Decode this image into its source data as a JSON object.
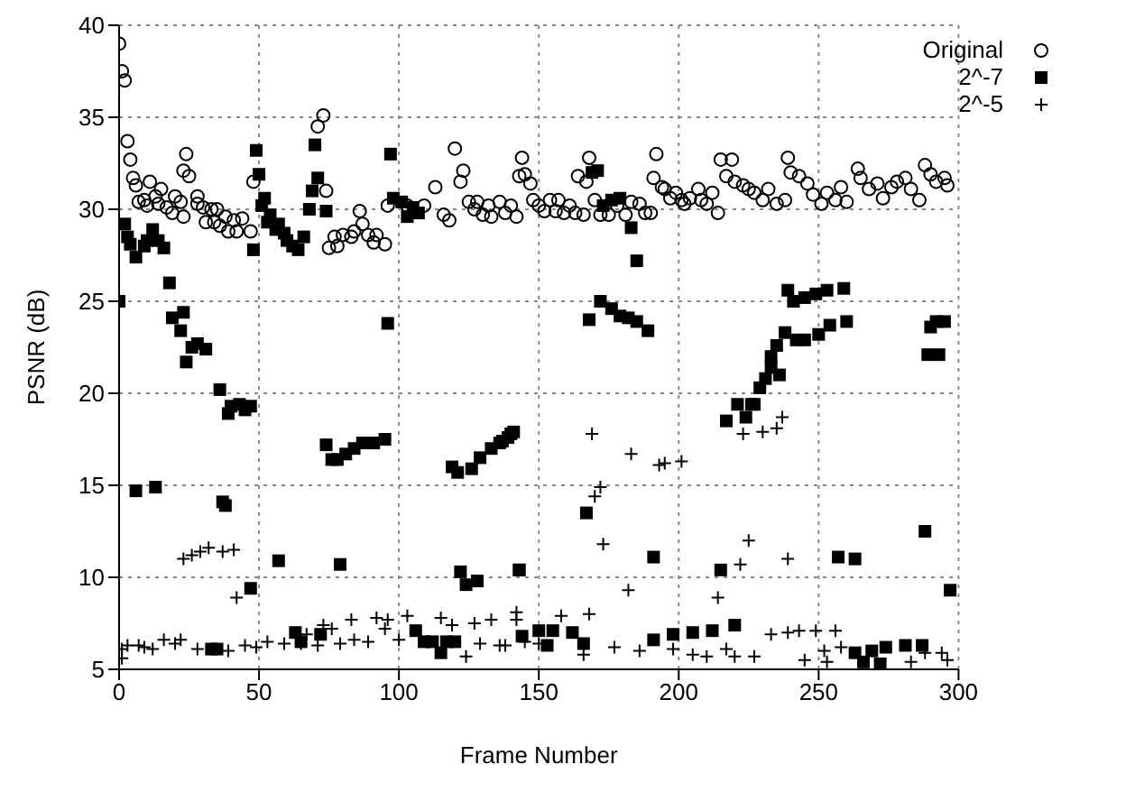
{
  "chart_data": {
    "type": "scatter",
    "xlabel": "Frame Number",
    "ylabel": "PSNR (dB)",
    "xlim": [
      0,
      300
    ],
    "xticks": [
      0,
      50,
      100,
      150,
      200,
      250,
      300
    ],
    "ylim": [
      5,
      40
    ],
    "yticks": [
      5,
      10,
      15,
      20,
      25,
      30,
      35,
      40
    ],
    "grid": true,
    "legend": "top right",
    "series": [
      {
        "name": "Original",
        "color": "#000000",
        "marker": "circle",
        "x": [
          0,
          1,
          2,
          3,
          4,
          5,
          6,
          7,
          9,
          10,
          11,
          13,
          14,
          15,
          17,
          19,
          20,
          22,
          23,
          23,
          24,
          25,
          28,
          28,
          30,
          31,
          33,
          34,
          35,
          36,
          38,
          39,
          41,
          42,
          44,
          47,
          48,
          71,
          73,
          74,
          75,
          77,
          78,
          80,
          83,
          84,
          86,
          87,
          89,
          91,
          92,
          95,
          96,
          103,
          109,
          113,
          116,
          118,
          120,
          122,
          123,
          125,
          127,
          128,
          130,
          132,
          133,
          136,
          138,
          140,
          142,
          144,
          143,
          145,
          147,
          148,
          150,
          152,
          154,
          156,
          157,
          159,
          161,
          163,
          164,
          166,
          167,
          168,
          170,
          172,
          175,
          178,
          181,
          183,
          186,
          188,
          190,
          191,
          192,
          194,
          195,
          197,
          199,
          201,
          202,
          204,
          207,
          208,
          210,
          212,
          214,
          215,
          217,
          219,
          220,
          223,
          225,
          227,
          230,
          232,
          235,
          238,
          239,
          240,
          243,
          246,
          248,
          251,
          253,
          256,
          258,
          260,
          264,
          265,
          268,
          271,
          273,
          276,
          278,
          281,
          283,
          286,
          288,
          290,
          292,
          295,
          296
        ],
        "values": [
          39,
          37.5,
          37,
          33.7,
          32.7,
          31.7,
          31.3,
          30.4,
          30.5,
          30.2,
          31.5,
          30.7,
          30.3,
          31.1,
          30.1,
          29.8,
          30.7,
          30.4,
          29.6,
          32.1,
          33,
          31.8,
          30.7,
          30.3,
          30.1,
          29.3,
          30,
          29.3,
          30,
          29.1,
          29.6,
          28.8,
          29.4,
          28.8,
          29.5,
          28.8,
          31.5,
          34.5,
          35.1,
          31,
          27.9,
          28.5,
          28,
          28.6,
          28.5,
          28.8,
          29.9,
          29.2,
          28.6,
          28.2,
          28.6,
          28.1,
          30.2,
          30.2,
          30.2,
          31.2,
          29.7,
          29.4,
          33.3,
          31.5,
          32.1,
          30.4,
          30,
          30.4,
          29.7,
          30.2,
          29.6,
          30.4,
          29.8,
          30.2,
          29.6,
          32.8,
          31.8,
          31.9,
          31.4,
          30.5,
          30.2,
          29.9,
          30.5,
          29.9,
          30.5,
          29.8,
          30.2,
          29.8,
          31.8,
          29.7,
          31.5,
          32.8,
          30.5,
          29.7,
          29.7,
          30.2,
          29.7,
          30.4,
          30.3,
          29.8,
          29.8,
          31.7,
          33,
          31.2,
          31.1,
          30.6,
          30.9,
          30.5,
          30.3,
          30.6,
          31.1,
          30.5,
          30.3,
          30.9,
          29.8,
          32.7,
          31.8,
          32.7,
          31.5,
          31.3,
          31.1,
          30.9,
          30.5,
          31.1,
          30.3,
          30.5,
          32.8,
          32,
          31.8,
          31.4,
          30.8,
          30.3,
          30.9,
          30.5,
          31.2,
          30.4,
          32.2,
          31.7,
          31.1,
          31.4,
          30.6,
          31.2,
          31.5,
          31.7,
          31.1,
          30.5,
          32.4,
          31.9,
          31.5,
          31.7,
          31.3
        ]
      },
      {
        "name": "2^-7",
        "color": "#000000",
        "marker": "square",
        "x": [
          0,
          2,
          3,
          4,
          6,
          9,
          10,
          12,
          14,
          16,
          18,
          19,
          22,
          23,
          26,
          28,
          31,
          24,
          36,
          39,
          40,
          43,
          45,
          47,
          6,
          13,
          37,
          38,
          47,
          57,
          63,
          65,
          33,
          35,
          74,
          76,
          78,
          81,
          84,
          87,
          91,
          95,
          79,
          72,
          106,
          109,
          112,
          115,
          117,
          120,
          119,
          121,
          126,
          129,
          133,
          136,
          139,
          141,
          122,
          124,
          128,
          143,
          144,
          48,
          49,
          50,
          51,
          52,
          53,
          54,
          56,
          57,
          59,
          60,
          62,
          64,
          66,
          68,
          69,
          70,
          71,
          74,
          96,
          97,
          98,
          101,
          103,
          105,
          107,
          169,
          171,
          173,
          176,
          179,
          183,
          185,
          168,
          172,
          176,
          179,
          182,
          185,
          189,
          233,
          235,
          238,
          239,
          241,
          245,
          249,
          253,
          259,
          242,
          245,
          250,
          254,
          260,
          290,
          292,
          295,
          289,
          293,
          140,
          137,
          167,
          191,
          143,
          215,
          220,
          217,
          221,
          224,
          226,
          227,
          229,
          231,
          233,
          236,
          257,
          263,
          288,
          297,
          150,
          153,
          155,
          162,
          166,
          191,
          198,
          205,
          212,
          263,
          266,
          269,
          272,
          274,
          281,
          287
        ],
        "values": [
          25,
          29.2,
          28.5,
          28.1,
          27.4,
          28,
          28.3,
          28.9,
          28.3,
          27.9,
          26,
          24.1,
          23.4,
          24.4,
          22.5,
          22.7,
          22.4,
          21.7,
          20.2,
          18.9,
          19.3,
          19.4,
          19.1,
          19.3,
          14.7,
          14.9,
          14.1,
          13.9,
          9.4,
          10.9,
          7,
          6.5,
          6.1,
          6.1,
          17.2,
          16.4,
          16.4,
          16.7,
          17,
          17.3,
          17.3,
          17.5,
          10.7,
          6.9,
          7.1,
          6.5,
          6.5,
          5.9,
          6.5,
          6.5,
          16,
          15.7,
          15.9,
          16.5,
          17,
          17.3,
          17.6,
          17.9,
          10.3,
          9.6,
          9.8,
          10.4,
          6.8,
          27.8,
          33.2,
          31.9,
          30.2,
          30.6,
          29.3,
          29.7,
          28.9,
          29.2,
          28.7,
          28.3,
          28,
          27.8,
          28.5,
          30,
          31,
          33.5,
          31.7,
          29.9,
          23.8,
          33,
          30.6,
          30.4,
          29.6,
          30.1,
          29.8,
          32,
          32.1,
          30.2,
          30.5,
          30.6,
          29,
          27.2,
          24,
          25,
          24.6,
          24.2,
          24.1,
          23.9,
          23.4,
          22,
          22.6,
          23.3,
          25.6,
          25,
          25.2,
          25.4,
          25.6,
          25.7,
          22.9,
          22.9,
          23.2,
          23.7,
          23.9,
          23.6,
          23.9,
          23.9,
          22.1,
          22.1,
          17.8,
          17.4,
          13.5,
          11.1,
          10.4,
          10.4,
          7.4,
          18.5,
          19.4,
          18.7,
          19.4,
          19.4,
          20.3,
          20.8,
          21.4,
          21,
          11.1,
          11,
          12.5,
          9.3,
          7.1,
          6.3,
          7.1,
          7,
          6.4,
          6.6,
          6.9,
          7,
          7.1,
          5.9,
          5.4,
          6,
          5.3,
          6.2,
          6.3,
          6.3
        ]
      },
      {
        "name": "2^-5",
        "color": "#000000",
        "marker": "cross",
        "x": [
          1,
          1,
          3,
          7,
          9,
          12,
          16,
          20,
          22,
          28,
          39,
          45,
          49,
          53,
          59,
          65,
          71,
          67,
          73,
          76,
          79,
          83,
          84,
          89,
          92,
          95,
          96,
          100,
          103,
          110,
          115,
          119,
          124,
          127,
          129,
          133,
          138,
          142,
          142,
          23,
          26,
          29,
          32,
          37,
          41,
          42,
          136,
          145,
          150,
          158,
          166,
          168,
          177,
          186,
          198,
          205,
          210,
          217,
          220,
          227,
          233,
          239,
          243,
          249,
          256,
          252,
          245,
          258,
          253,
          283,
          288,
          294,
          296,
          169,
          170,
          172,
          173,
          182,
          183,
          193,
          195,
          201,
          214,
          222,
          225,
          223,
          230,
          235,
          237,
          239
        ],
        "values": [
          5.6,
          6.1,
          6.3,
          6.3,
          6.2,
          6.1,
          6.6,
          6.4,
          6.6,
          6.1,
          6,
          6.3,
          6.2,
          6.5,
          6.4,
          6.4,
          6.3,
          6.9,
          7.4,
          7.2,
          6.4,
          7.7,
          6.6,
          6.5,
          7.8,
          7.2,
          7.7,
          6.6,
          7.9,
          6.5,
          7.8,
          7.4,
          5.7,
          7.5,
          6.4,
          7.7,
          6.3,
          7.7,
          8.1,
          11,
          11.2,
          11.4,
          11.6,
          11.4,
          11.5,
          8.9,
          6.3,
          6.5,
          6.4,
          7.9,
          5.8,
          8,
          6.2,
          6,
          6.1,
          5.8,
          5.7,
          6.1,
          5.7,
          5.7,
          6.9,
          7,
          7.1,
          7.1,
          7.1,
          6,
          5.5,
          6.2,
          5.4,
          5.4,
          5.9,
          5.9,
          5.5,
          17.8,
          14.4,
          14.9,
          11.8,
          9.3,
          16.7,
          16.1,
          16.2,
          16.3,
          8.9,
          10.7,
          12,
          17.8,
          17.9,
          18.1,
          18.7,
          11
        ]
      }
    ]
  }
}
